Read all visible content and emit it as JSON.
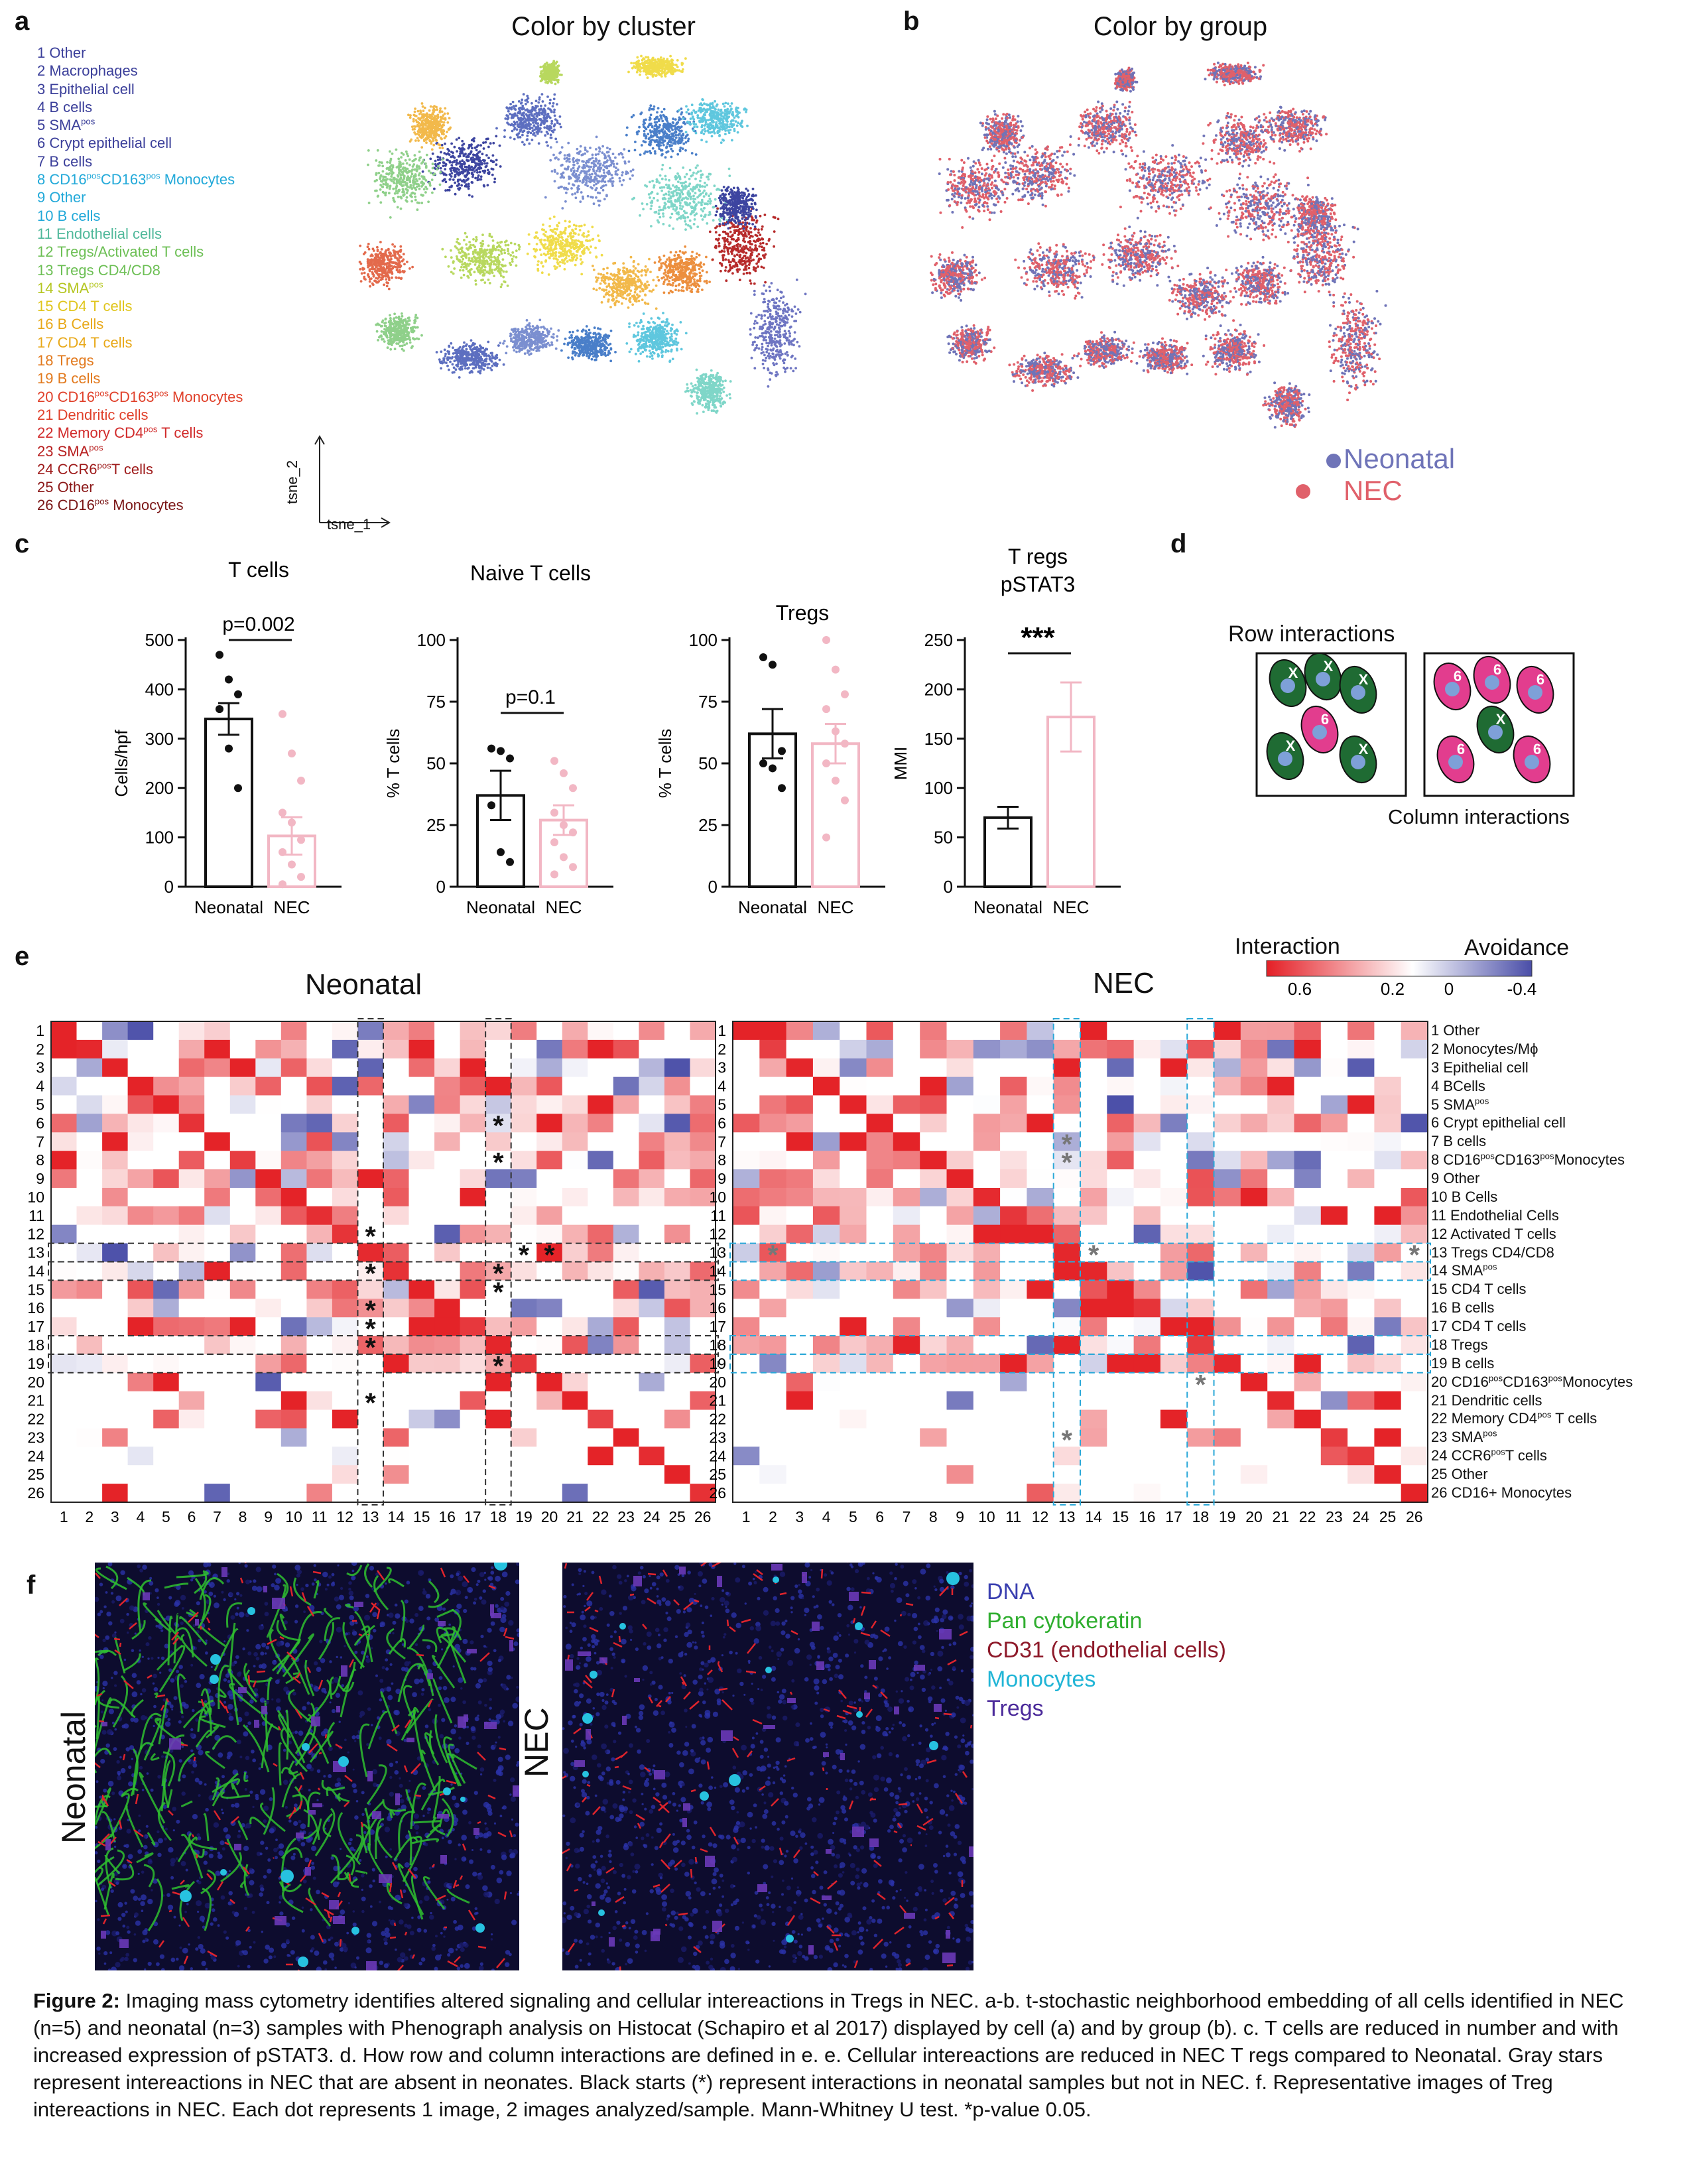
{
  "panel_letters": {
    "a": "a",
    "b": "b",
    "c": "c",
    "d": "d",
    "e": "e",
    "f": "f"
  },
  "panel_a": {
    "title": "Color by cluster",
    "axis_y": "tsne_2",
    "axis_x": "tsne_1",
    "legend": [
      {
        "num": "1",
        "label": "Other",
        "sup": "",
        "after": "",
        "color": "#3b3f9a"
      },
      {
        "num": "2",
        "label": "Macrophages",
        "sup": "",
        "after": "",
        "color": "#3b3f9a"
      },
      {
        "num": "3",
        "label": "Epithelial cell",
        "sup": "",
        "after": "",
        "color": "#3b3f9a"
      },
      {
        "num": "4",
        "label": "B cells",
        "sup": "",
        "after": "",
        "color": "#3b3f9a"
      },
      {
        "num": "5",
        "label": "SMA",
        "sup": "pos",
        "after": "",
        "color": "#3b3f9a"
      },
      {
        "num": "6",
        "label": "Crypt epithelial cell",
        "sup": "",
        "after": "",
        "color": "#3b3f9a"
      },
      {
        "num": "7",
        "label": "B cells",
        "sup": "",
        "after": "",
        "color": "#3b3f9a"
      },
      {
        "num": "8",
        "label": "CD16",
        "sup": "pos",
        "after": "CD163",
        "sup2": "pos",
        "after2": " Monocytes",
        "color": "#22a9d9"
      },
      {
        "num": "9",
        "label": "Other",
        "sup": "",
        "after": "",
        "color": "#22a9d9"
      },
      {
        "num": "10",
        "label": "B cells",
        "sup": "",
        "after": "",
        "color": "#22a9d9"
      },
      {
        "num": "11",
        "label": "Endothelial cells",
        "sup": "",
        "after": "",
        "color": "#4fb89a"
      },
      {
        "num": "12",
        "label": "Tregs/Activated T cells",
        "sup": "",
        "after": "",
        "color": "#6cbf54"
      },
      {
        "num": "13",
        "label": "Tregs CD4/CD8",
        "sup": "",
        "after": "",
        "color": "#6cbf54"
      },
      {
        "num": "14",
        "label": "SMA",
        "sup": "pos",
        "after": "",
        "color": "#b5c622"
      },
      {
        "num": "15",
        "label": "CD4 T cells",
        "sup": "",
        "after": "",
        "color": "#e0c51b"
      },
      {
        "num": "16",
        "label": "B Cells",
        "sup": "",
        "after": "",
        "color": "#e8a818"
      },
      {
        "num": "17",
        "label": "CD4 T cells",
        "sup": "",
        "after": "",
        "color": "#e8a818"
      },
      {
        "num": "18",
        "label": "Tregs",
        "sup": "",
        "after": "",
        "color": "#e2791d"
      },
      {
        "num": "19",
        "label": "B cells",
        "sup": "",
        "after": "",
        "color": "#e2791d"
      },
      {
        "num": "20",
        "label": "CD16",
        "sup": "pos",
        "after": "CD163",
        "sup2": "pos",
        "after2": " Monocytes",
        "color": "#e0402a"
      },
      {
        "num": "21",
        "label": "Dendritic cells",
        "sup": "",
        "after": "",
        "color": "#e0402a"
      },
      {
        "num": "22",
        "label": "Memory CD4",
        "sup": "pos",
        "after": " T cells",
        "color": "#d12a2a"
      },
      {
        "num": "23",
        "label": "SMA",
        "sup": "pos",
        "after": "",
        "color": "#b82020"
      },
      {
        "num": "24",
        "label": "CCR6",
        "sup": "pos",
        "after": "T cells",
        "color": "#9e1a1a"
      },
      {
        "num": "25",
        "label": "Other",
        "sup": "",
        "after": "",
        "color": "#8b1818"
      },
      {
        "num": "26",
        "label": "CD16",
        "sup": "pos",
        "after": " Monocytes",
        "color": "#7a1515"
      }
    ]
  },
  "panel_b": {
    "title": "Color by group",
    "legend": [
      {
        "label": "Neonatal",
        "color": "#6f74b8"
      },
      {
        "label": "NEC",
        "color": "#e0606a"
      }
    ]
  },
  "panel_c": {
    "charts": [
      {
        "title": "T cells",
        "ylabel": "Cells/hpf",
        "ylim": [
          0,
          500
        ],
        "ticks": [
          "0",
          "100",
          "200",
          "300",
          "400",
          "500"
        ],
        "categories": [
          "Neonatal",
          "NEC"
        ],
        "means": [
          340,
          103
        ],
        "sem": [
          32,
          38
        ],
        "points": [
          [
            470,
            420,
            390,
            360,
            280,
            200
          ],
          [
            350,
            270,
            215,
            150,
            130,
            95,
            70,
            45,
            20,
            5
          ]
        ],
        "annotation": "p=0.002",
        "stars": ""
      },
      {
        "title": "Naive T cells",
        "ylabel": "% T cells",
        "ylim": [
          0,
          100
        ],
        "ticks": [
          "0",
          "25",
          "50",
          "75",
          "100"
        ],
        "categories": [
          "Neonatal",
          "NEC"
        ],
        "means": [
          37,
          27
        ],
        "sem": [
          10,
          6
        ],
        "points": [
          [
            56,
            55,
            52,
            33,
            14,
            10
          ],
          [
            51,
            46,
            40,
            30,
            25,
            22,
            18,
            12,
            8,
            5
          ]
        ],
        "annotation": "p=0.1",
        "stars": ""
      },
      {
        "title": "Tregs",
        "ylabel": "% T cells",
        "ylim": [
          0,
          100
        ],
        "ticks": [
          "0",
          "25",
          "50",
          "75",
          "100"
        ],
        "categories": [
          "Neonatal",
          "NEC"
        ],
        "means": [
          62,
          58
        ],
        "sem": [
          10,
          8
        ],
        "points": [
          [
            93,
            90,
            55,
            50,
            48,
            40
          ],
          [
            100,
            88,
            78,
            72,
            63,
            58,
            50,
            43,
            35,
            20
          ]
        ],
        "annotation": "",
        "stars": "",
        "title_only": true
      },
      {
        "title": "T regs",
        "title2": "pSTAT3",
        "ylabel": "MMI",
        "ylim": [
          0,
          250
        ],
        "ticks": [
          "0",
          "50",
          "100",
          "150",
          "200",
          "250"
        ],
        "categories": [
          "Neonatal",
          "NEC"
        ],
        "means": [
          70,
          172
        ],
        "sem": [
          11,
          35
        ],
        "points": [
          [],
          []
        ],
        "annotation": "",
        "stars": "***"
      }
    ]
  },
  "panel_d": {
    "title": "Row interactions",
    "footer": "Column interactions",
    "left_labels": [
      "X",
      "X",
      "X",
      "6",
      "X",
      "X"
    ],
    "right_labels": [
      "6",
      "6",
      "6",
      "X",
      "6",
      "6"
    ]
  },
  "panel_e": {
    "colorbar_left": "Interaction",
    "colorbar_right": "Avoidance",
    "colorbar_ticks": [
      "0.6",
      "0.2",
      "0",
      "-0.4"
    ],
    "neonatal_title": "Neonatal",
    "nec_title": "NEC",
    "axis_numbers": [
      "1",
      "2",
      "3",
      "4",
      "5",
      "6",
      "7",
      "8",
      "9",
      "10",
      "11",
      "12",
      "13",
      "14",
      "15",
      "16",
      "17",
      "18",
      "19",
      "20",
      "21",
      "22",
      "23",
      "24",
      "25",
      "26"
    ],
    "nec_row_labels": [
      {
        "t": "1  Other"
      },
      {
        "t": "2  Monocytes/Mϕ"
      },
      {
        "t": "3  Epithelial cell"
      },
      {
        "t": "4  BCells"
      },
      {
        "t": "5  SMA",
        "sup": "pos"
      },
      {
        "t": "6  Crypt epithelial cell"
      },
      {
        "t": "7  B cells"
      },
      {
        "t": "8  CD16",
        "sup": "pos",
        "t2": "CD163",
        "sup2": "pos",
        "t3": "Monocytes"
      },
      {
        "t": "9  Other"
      },
      {
        "t": "10 B Cells"
      },
      {
        "t": "11 Endothelial Cells"
      },
      {
        "t": "12 Activated T cells"
      },
      {
        "t": "13 Tregs CD4/CD8"
      },
      {
        "t": "14 SMA",
        "sup": "pos"
      },
      {
        "t": "15 CD4 T cells"
      },
      {
        "t": "16 B cells"
      },
      {
        "t": "17 CD4 T cells"
      },
      {
        "t": "18 Tregs"
      },
      {
        "t": "19 B cells"
      },
      {
        "t": "20 CD16",
        "sup": "pos",
        "t2": "CD163",
        "sup2": "pos",
        "t3": "Monocytes"
      },
      {
        "t": "21 Dendritic cells"
      },
      {
        "t": "22 Memory CD4",
        "sup": "pos",
        "t2": " T cells"
      },
      {
        "t": "23 SMA",
        "sup": "pos"
      },
      {
        "t": "24 CCR6",
        "sup": "pos",
        "t2": "T cells"
      },
      {
        "t": "25 Other"
      },
      {
        "t": "26 CD16+ Monocytes"
      }
    ],
    "star": "*"
  },
  "panel_f": {
    "left_label": "Neonatal",
    "right_label": "NEC",
    "legend": [
      {
        "label": "DNA",
        "color": "#3a3fb0"
      },
      {
        "label": "Pan cytokeratin",
        "color": "#2fae2f"
      },
      {
        "label": "CD31 (endothelial cells)",
        "color": "#8e1a2a"
      },
      {
        "label": "Monocytes",
        "color": "#21b5d6"
      },
      {
        "label": "Tregs",
        "color": "#4b2a9a"
      }
    ]
  },
  "caption": {
    "bold": "Figure 2:",
    "text": " Imaging mass cytometry identifies altered signaling and cellular intereactions in Tregs in NEC. a-b. t-stochastic neighborhood embedding of all cells identified in NEC (n=5) and neonatal (n=3) samples with Phenograph analysis on Histocat (Schapiro et al 2017) displayed by cell (a) and by group (b). c. T cells are reduced in number and with increased expression of pSTAT3. d. How row and column interactions are defined in e. e. Cellular intereactions are reduced in NEC T regs compared to Neonatal. Gray stars represent intereactions in NEC that are absent in neonates. Black starts (*) represent interactions in neonatal samples but not in NEC. f. Representative images of Treg intereactions in NEC. Each dot represents 1 image, 2 images analyzed/sample. Mann-Whitney U test. *p-value 0.05."
  }
}
